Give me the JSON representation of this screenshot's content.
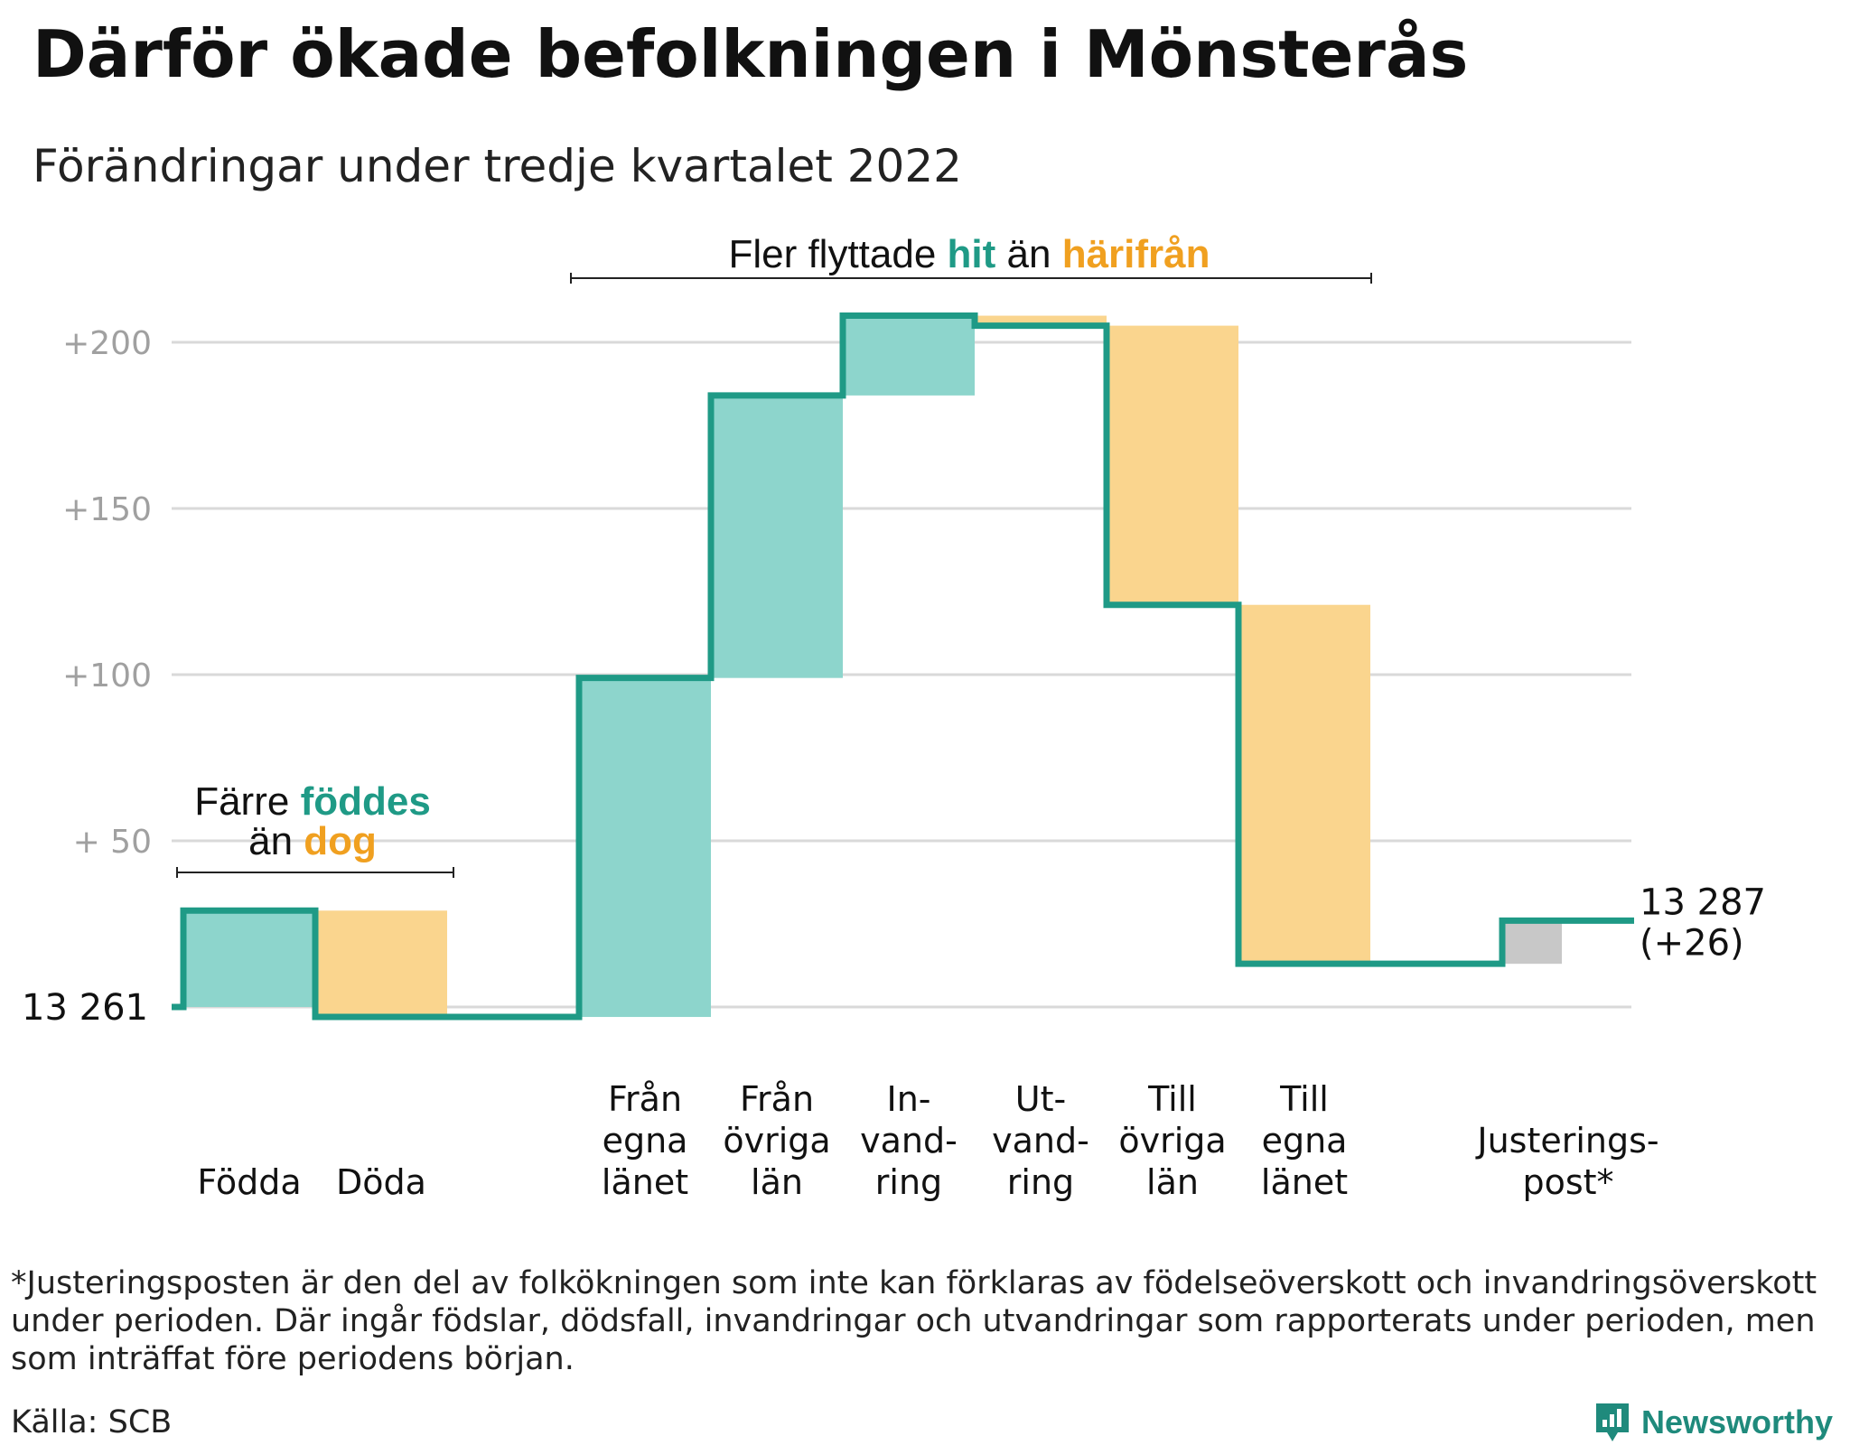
{
  "title": "Därför ökade befolkningen i Mönsterås",
  "subtitle": "Förändringar under tredje kvartalet 2022",
  "colors": {
    "inflow": "#8dd5cc",
    "outflow": "#fad58e",
    "adjustment": "#c8c8c8",
    "line": "#1f9a86",
    "accent_green": "#1f9a86",
    "accent_orange": "#f0a020",
    "grid": "#d9d9d9",
    "tick_text": "#a0a0a0"
  },
  "annotations": {
    "migration": {
      "prefix": "Fler flyttade ",
      "hit": "hit",
      "middle": " än ",
      "harifran": "härifrån"
    },
    "births": {
      "line1_prefix": "Färre ",
      "foddes": "föddes",
      "line2_prefix": "än ",
      "dog": "dog"
    }
  },
  "chart_data": {
    "type": "waterfall",
    "baseline_label": "13 261",
    "end_label_line1": "13 287",
    "end_label_line2": "(+26)",
    "ylim": [
      0,
      210
    ],
    "y_ticks": [
      {
        "value": 50,
        "label": "+ 50"
      },
      {
        "value": 100,
        "label": "+100"
      },
      {
        "value": 150,
        "label": "+150"
      },
      {
        "value": 200,
        "label": "+200"
      }
    ],
    "steps": [
      {
        "label_lines": [
          "Födda"
        ],
        "kind": "inflow",
        "start": 0,
        "end": 29,
        "change": 29
      },
      {
        "label_lines": [
          "Döda"
        ],
        "kind": "outflow",
        "start": 29,
        "end": -3,
        "change": -32
      },
      {
        "label_lines": [],
        "kind": "none",
        "start": -3,
        "end": -3,
        "change": 0
      },
      {
        "label_lines": [
          "Från",
          "egna",
          "länet"
        ],
        "kind": "inflow",
        "start": -3,
        "end": 99,
        "change": 102
      },
      {
        "label_lines": [
          "Från",
          "övriga",
          "län"
        ],
        "kind": "inflow",
        "start": 99,
        "end": 184,
        "change": 85
      },
      {
        "label_lines": [
          "In-",
          "vand-",
          "ring"
        ],
        "kind": "inflow",
        "start": 184,
        "end": 208,
        "change": 24
      },
      {
        "label_lines": [
          "Ut-",
          "vand-",
          "ring"
        ],
        "kind": "outflow",
        "start": 208,
        "end": 205,
        "change": -3
      },
      {
        "label_lines": [
          "Till",
          "övriga",
          "län"
        ],
        "kind": "outflow",
        "start": 205,
        "end": 121,
        "change": -84
      },
      {
        "label_lines": [
          "Till",
          "egna",
          "länet"
        ],
        "kind": "outflow",
        "start": 121,
        "end": 13,
        "change": -108
      },
      {
        "label_lines": [],
        "kind": "none",
        "start": 13,
        "end": 13,
        "change": 0
      },
      {
        "label_lines": [
          "Justerings-",
          "post*"
        ],
        "kind": "adjustment",
        "start": 13,
        "end": 26,
        "change": 13
      }
    ]
  },
  "footnote": "*Justeringsposten är den del av folkökningen som inte kan förklaras av födelseöverskott och invandringsöverskott under perioden. Där ingår födslar, dödsfall, invandringar och utvandringar som rapporterats under perioden, men som inträffat före periodens början.",
  "source": "Källa: SCB",
  "brand": "Newsworthy",
  "brand_icon": "newsworthy-logo-icon"
}
